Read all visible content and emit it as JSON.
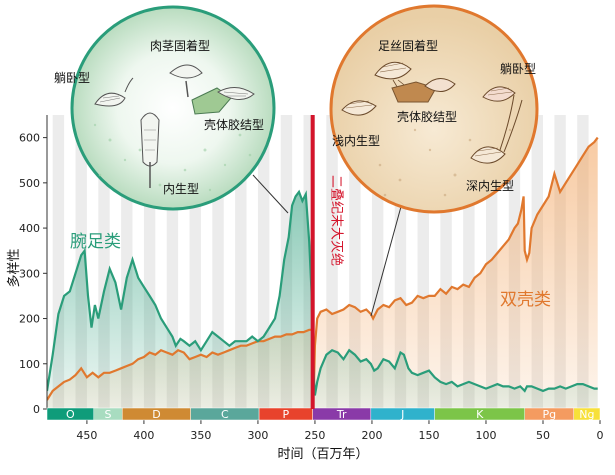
{
  "chart_data": {
    "type": "area",
    "xlabel": "时间（百万年）",
    "ylabel": "多样性",
    "xlim": [
      485,
      0
    ],
    "ylim": [
      0,
      650
    ],
    "x_ticks": [
      450,
      400,
      350,
      300,
      250,
      200,
      150,
      100,
      50,
      0
    ],
    "y_ticks": [
      0,
      100,
      200,
      300,
      400,
      500,
      600
    ],
    "series": [
      {
        "name": "腕足类",
        "color": "#2a9d7a",
        "x": [
          485,
          480,
          475,
          470,
          465,
          460,
          455,
          452,
          449,
          446,
          443,
          440,
          435,
          430,
          425,
          420,
          415,
          410,
          405,
          400,
          395,
          390,
          385,
          380,
          375,
          372,
          368,
          365,
          360,
          355,
          350,
          345,
          340,
          335,
          330,
          325,
          320,
          315,
          310,
          305,
          300,
          295,
          290,
          285,
          281,
          277,
          273,
          270,
          267,
          264,
          261,
          258,
          255,
          253,
          252,
          251,
          250,
          248,
          245,
          240,
          235,
          230,
          225,
          220,
          215,
          210,
          205,
          201,
          198,
          195,
          190,
          185,
          180,
          175,
          172,
          168,
          165,
          160,
          155,
          150,
          145,
          140,
          135,
          130,
          125,
          120,
          115,
          110,
          105,
          100,
          95,
          90,
          85,
          80,
          75,
          70,
          66,
          64,
          60,
          55,
          50,
          45,
          40,
          35,
          30,
          25,
          20,
          15,
          10,
          5,
          2
        ],
        "y": [
          40,
          120,
          210,
          250,
          260,
          300,
          340,
          350,
          250,
          180,
          230,
          200,
          260,
          310,
          280,
          220,
          290,
          330,
          290,
          270,
          250,
          230,
          200,
          180,
          160,
          140,
          155,
          150,
          140,
          150,
          130,
          150,
          170,
          160,
          150,
          140,
          150,
          150,
          150,
          160,
          150,
          160,
          180,
          200,
          250,
          330,
          380,
          450,
          470,
          480,
          460,
          475,
          370,
          260,
          150,
          70,
          30,
          60,
          90,
          120,
          130,
          125,
          110,
          130,
          120,
          105,
          110,
          100,
          85,
          90,
          110,
          105,
          90,
          125,
          120,
          90,
          80,
          75,
          80,
          85,
          70,
          60,
          55,
          60,
          50,
          55,
          60,
          55,
          50,
          45,
          50,
          55,
          50,
          50,
          45,
          50,
          40,
          50,
          50,
          45,
          40,
          45,
          45,
          50,
          45,
          50,
          55,
          55,
          50,
          45,
          45
        ]
      },
      {
        "name": "双壳类",
        "color": "#e0782e",
        "x": [
          485,
          480,
          475,
          470,
          465,
          460,
          455,
          450,
          445,
          440,
          435,
          430,
          425,
          420,
          415,
          410,
          405,
          400,
          395,
          390,
          385,
          380,
          375,
          370,
          365,
          360,
          355,
          350,
          345,
          340,
          335,
          330,
          325,
          320,
          315,
          310,
          305,
          300,
          295,
          290,
          285,
          280,
          275,
          270,
          265,
          260,
          255,
          252,
          251,
          250,
          248,
          245,
          240,
          235,
          230,
          225,
          220,
          215,
          210,
          205,
          201,
          199,
          195,
          190,
          185,
          180,
          175,
          170,
          165,
          160,
          155,
          150,
          145,
          140,
          135,
          130,
          125,
          120,
          115,
          110,
          105,
          100,
          95,
          90,
          85,
          80,
          75,
          72,
          69,
          67,
          66,
          64,
          62,
          60,
          55,
          50,
          45,
          40,
          35,
          30,
          25,
          20,
          15,
          10,
          5,
          2
        ],
        "y": [
          20,
          40,
          50,
          60,
          65,
          75,
          90,
          70,
          80,
          70,
          80,
          80,
          85,
          90,
          95,
          100,
          110,
          115,
          125,
          120,
          130,
          125,
          120,
          130,
          125,
          110,
          115,
          120,
          115,
          125,
          120,
          125,
          130,
          135,
          140,
          140,
          145,
          150,
          150,
          155,
          160,
          160,
          165,
          165,
          170,
          170,
          175,
          175,
          40,
          140,
          200,
          215,
          220,
          210,
          215,
          220,
          230,
          225,
          215,
          220,
          210,
          200,
          220,
          230,
          225,
          240,
          245,
          230,
          235,
          250,
          245,
          250,
          250,
          265,
          255,
          270,
          265,
          275,
          270,
          290,
          300,
          320,
          330,
          345,
          360,
          375,
          400,
          410,
          440,
          470,
          350,
          330,
          345,
          400,
          430,
          450,
          470,
          520,
          480,
          500,
          520,
          540,
          560,
          580,
          590,
          600
        ]
      }
    ],
    "annotations": [
      "二叠纪末大灭绝"
    ],
    "extinction_x": 252,
    "periods": [
      {
        "label": "O",
        "start": 485,
        "end": 444,
        "color": "#0f9c7a"
      },
      {
        "label": "S",
        "start": 444,
        "end": 419,
        "color": "#a8dcc0"
      },
      {
        "label": "D",
        "start": 419,
        "end": 359,
        "color": "#cf8a33"
      },
      {
        "label": "C",
        "start": 359,
        "end": 299,
        "color": "#5aa79b"
      },
      {
        "label": "P",
        "start": 299,
        "end": 252,
        "color": "#e8432c"
      },
      {
        "label": "Tr",
        "start": 252,
        "end": 201,
        "color": "#8a3aa8"
      },
      {
        "label": "J",
        "start": 201,
        "end": 145,
        "color": "#2fb2cc"
      },
      {
        "label": "K",
        "start": 145,
        "end": 66,
        "color": "#7cc548"
      },
      {
        "label": "Pg",
        "start": 66,
        "end": 23,
        "color": "#f49b60"
      },
      {
        "label": "Ng",
        "start": 23,
        "end": 0,
        "color": "#f7e03a"
      }
    ]
  },
  "insets": {
    "brachiopod": {
      "labels": [
        "躺卧型",
        "肉茎固着型",
        "壳体胶结型",
        "内生型"
      ]
    },
    "bivalve": {
      "labels": [
        "足丝固着型",
        "躺卧型",
        "壳体胶结型",
        "浅内生型",
        "深内生型"
      ]
    }
  }
}
